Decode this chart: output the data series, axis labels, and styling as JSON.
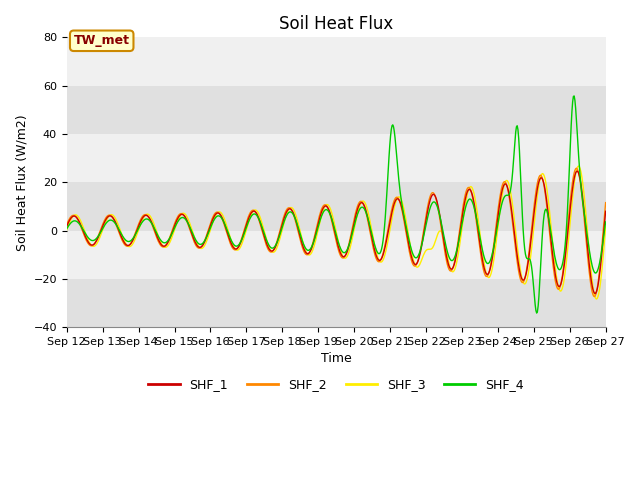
{
  "title": "Soil Heat Flux",
  "ylabel": "Soil Heat Flux (W/m2)",
  "xlabel": "Time",
  "annotation": "TW_met",
  "ylim": [
    -40,
    80
  ],
  "series_colors": {
    "SHF_1": "#cc0000",
    "SHF_2": "#ff8800",
    "SHF_3": "#ffee00",
    "SHF_4": "#00cc00"
  },
  "legend_labels": [
    "SHF_1",
    "SHF_2",
    "SHF_3",
    "SHF_4"
  ],
  "xtick_labels": [
    "Sep 12",
    "Sep 13",
    "Sep 14",
    "Sep 15",
    "Sep 16",
    "Sep 17",
    "Sep 18",
    "Sep 19",
    "Sep 20",
    "Sep 21",
    "Sep 22",
    "Sep 23",
    "Sep 24",
    "Sep 25",
    "Sep 26",
    "Sep 27"
  ],
  "bg_band_light": "#f0f0f0",
  "bg_band_dark": "#e0e0e0",
  "title_fontsize": 12,
  "axis_fontsize": 9,
  "tick_fontsize": 8
}
